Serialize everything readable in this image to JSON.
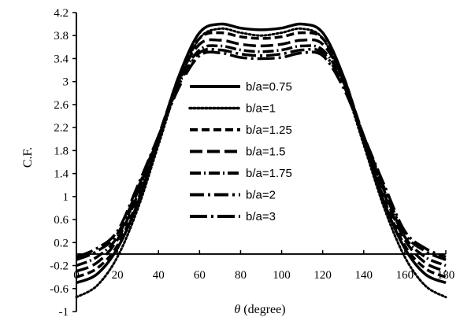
{
  "chart_data": {
    "type": "line",
    "title": "",
    "xlabel_symbol": "θ",
    "xlabel_text": " (degree)",
    "ylabel": "C.F.",
    "xlim": [
      0,
      180
    ],
    "ylim": [
      -1,
      4.2
    ],
    "xticks": [
      0,
      20,
      40,
      60,
      80,
      100,
      120,
      140,
      160,
      180
    ],
    "yticks": [
      -1,
      -0.6,
      -0.2,
      0.2,
      0.6,
      1,
      1.4,
      1.8,
      2.2,
      2.6,
      3,
      3.4,
      3.8,
      4.2
    ],
    "ytick_labels": [
      "-1",
      "-0.6",
      "-0.2",
      "0.2",
      "0.6",
      "1",
      "1.4",
      "1.8",
      "2.2",
      "2.6",
      "3",
      "3.4",
      "3.8",
      "4.2"
    ],
    "grid": false,
    "legend_position": "center",
    "x": [
      0,
      10,
      20,
      30,
      40,
      50,
      60,
      70,
      80,
      90,
      100,
      110,
      120,
      130,
      140,
      150,
      160,
      170,
      180
    ],
    "series": [
      {
        "name": "b/a=0.75",
        "dash": "solid",
        "values": [
          -0.5,
          -0.35,
          0.1,
          0.9,
          2.0,
          3.1,
          3.85,
          4.0,
          3.93,
          3.9,
          3.93,
          4.0,
          3.85,
          3.1,
          2.0,
          0.9,
          0.1,
          -0.35,
          -0.5
        ]
      },
      {
        "name": "b/a=1",
        "dash": "dot",
        "values": [
          -0.75,
          -0.55,
          -0.05,
          0.8,
          1.9,
          3.0,
          3.75,
          3.92,
          3.85,
          3.8,
          3.85,
          3.92,
          3.75,
          3.0,
          1.9,
          0.8,
          -0.05,
          -0.55,
          -0.75
        ]
      },
      {
        "name": "b/a=1.25",
        "dash": "dash",
        "values": [
          -0.4,
          -0.25,
          0.15,
          0.95,
          2.0,
          3.1,
          3.75,
          3.85,
          3.78,
          3.75,
          3.78,
          3.85,
          3.75,
          3.1,
          2.0,
          0.95,
          0.15,
          -0.25,
          -0.4
        ]
      },
      {
        "name": "b/a=1.5",
        "dash": "longdash",
        "values": [
          -0.3,
          -0.15,
          0.25,
          1.05,
          2.05,
          3.05,
          3.65,
          3.72,
          3.65,
          3.62,
          3.65,
          3.72,
          3.65,
          3.05,
          2.05,
          1.05,
          0.25,
          -0.15,
          -0.3
        ]
      },
      {
        "name": "b/a=1.75",
        "dash": "dashdot",
        "values": [
          -0.2,
          -0.05,
          0.3,
          1.1,
          2.05,
          3.0,
          3.55,
          3.62,
          3.55,
          3.52,
          3.55,
          3.62,
          3.55,
          3.0,
          2.05,
          1.1,
          0.3,
          -0.05,
          -0.2
        ]
      },
      {
        "name": "b/a=2",
        "dash": "dashdotdot",
        "values": [
          -0.1,
          0.05,
          0.35,
          1.15,
          2.05,
          2.95,
          3.5,
          3.55,
          3.48,
          3.45,
          3.48,
          3.55,
          3.5,
          2.95,
          2.05,
          1.15,
          0.35,
          0.05,
          -0.1
        ]
      },
      {
        "name": "b/a=3",
        "dash": "longdashdot",
        "values": [
          -0.05,
          0.1,
          0.4,
          1.2,
          2.05,
          2.9,
          3.45,
          3.5,
          3.42,
          3.4,
          3.42,
          3.5,
          3.45,
          2.9,
          2.05,
          1.2,
          0.4,
          0.1,
          -0.05
        ]
      }
    ]
  }
}
